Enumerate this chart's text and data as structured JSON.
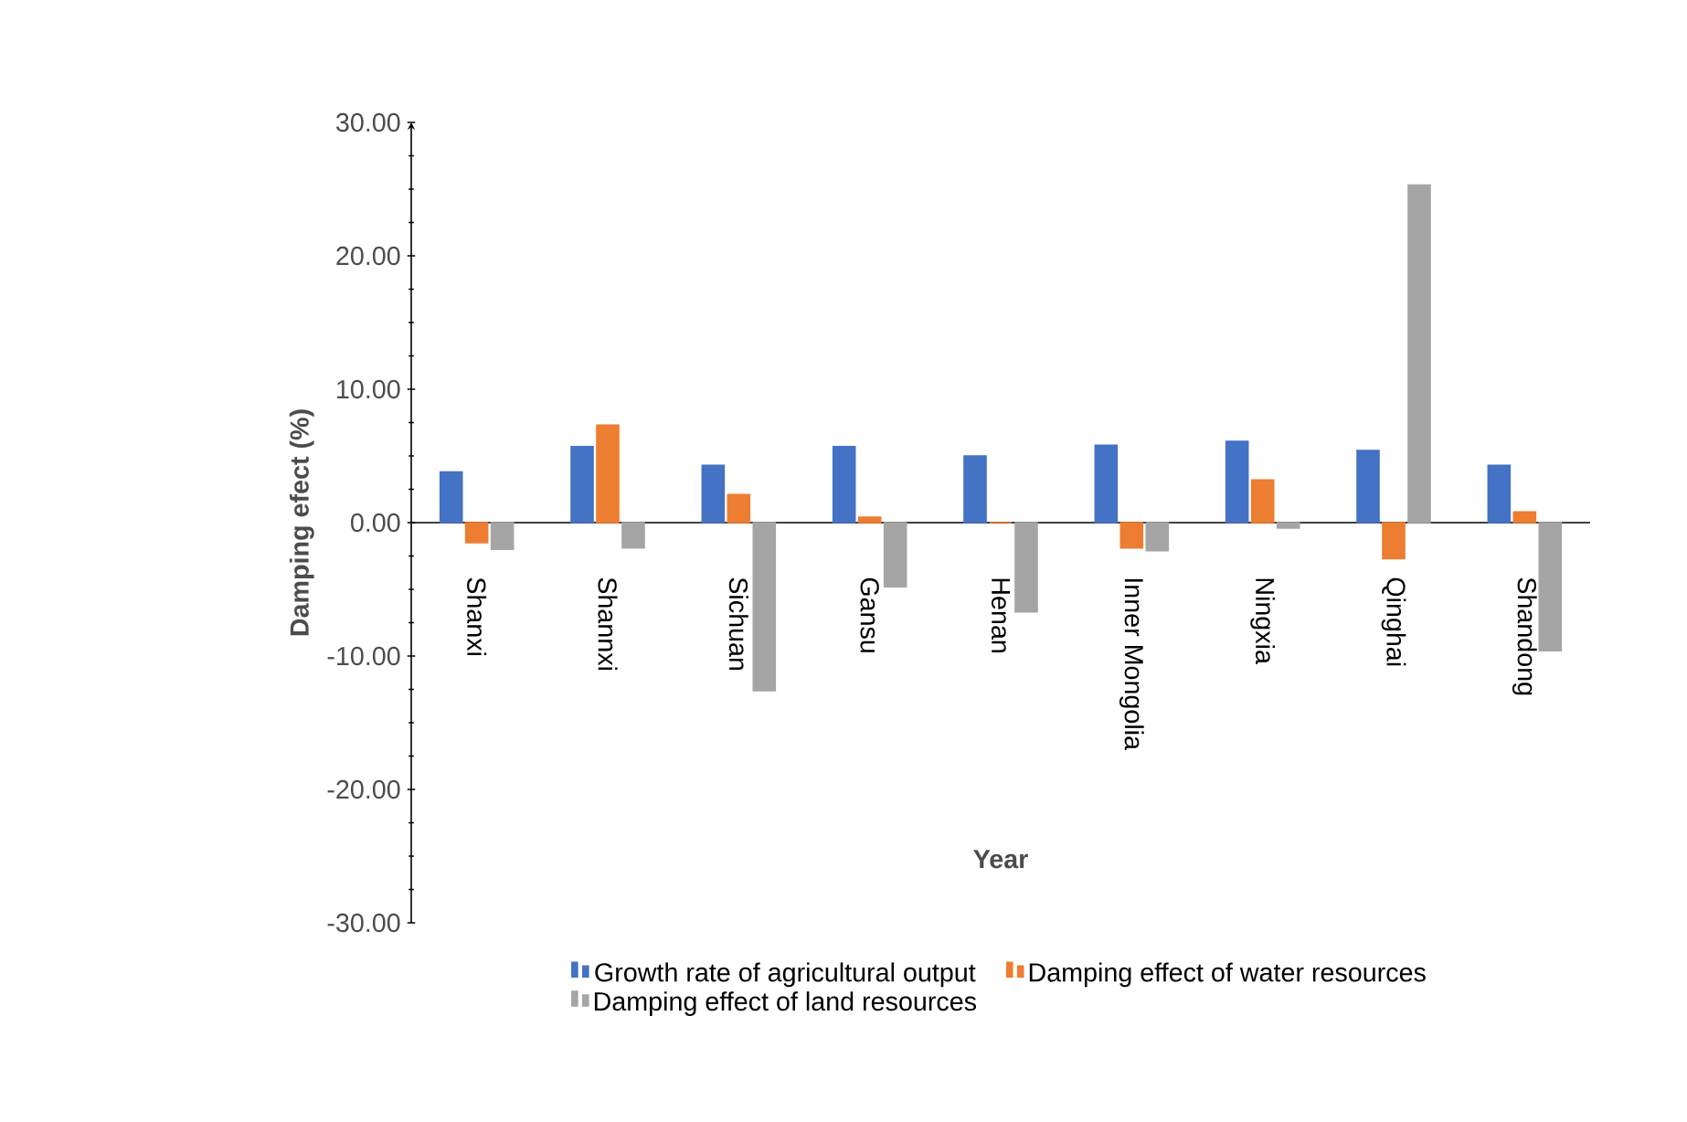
{
  "chart_data": {
    "type": "bar",
    "xlabel": "Year",
    "ylabel": "Damping efect  (%)",
    "categories": [
      "Shanxi",
      "Shannxi",
      "Sichuan",
      "Gansu",
      "Henan",
      "Inner Mongolia",
      "Ningxia",
      "Qinghai",
      "Shandong"
    ],
    "series": [
      {
        "name": "Growth rate of agricultural output",
        "color": "#4472c4",
        "values": [
          3.8,
          5.7,
          4.3,
          5.7,
          5.0,
          5.8,
          6.1,
          5.4,
          4.3
        ]
      },
      {
        "name": "Damping effect of water resources",
        "color": "#ed7d31",
        "values": [
          -1.5,
          7.3,
          2.1,
          0.4,
          0.0,
          -1.9,
          3.2,
          -2.7,
          0.8
        ]
      },
      {
        "name": "Damping effect of land resources",
        "color": "#a5a5a5",
        "values": [
          -2.0,
          -1.9,
          -12.6,
          -4.8,
          -6.7,
          -2.1,
          -0.4,
          25.3,
          -9.6
        ]
      }
    ],
    "ylim": [
      -30,
      30
    ],
    "yticks": [
      {
        "value": -30,
        "label": "-30.00"
      },
      {
        "value": -20,
        "label": "-20.00"
      },
      {
        "value": -10,
        "label": "-10.00"
      },
      {
        "value": 0,
        "label": "0.00"
      },
      {
        "value": 10,
        "label": "10.00"
      },
      {
        "value": 20,
        "label": "20.00"
      },
      {
        "value": 30,
        "label": "30.00"
      }
    ],
    "grid": false,
    "legend": "bottom"
  }
}
